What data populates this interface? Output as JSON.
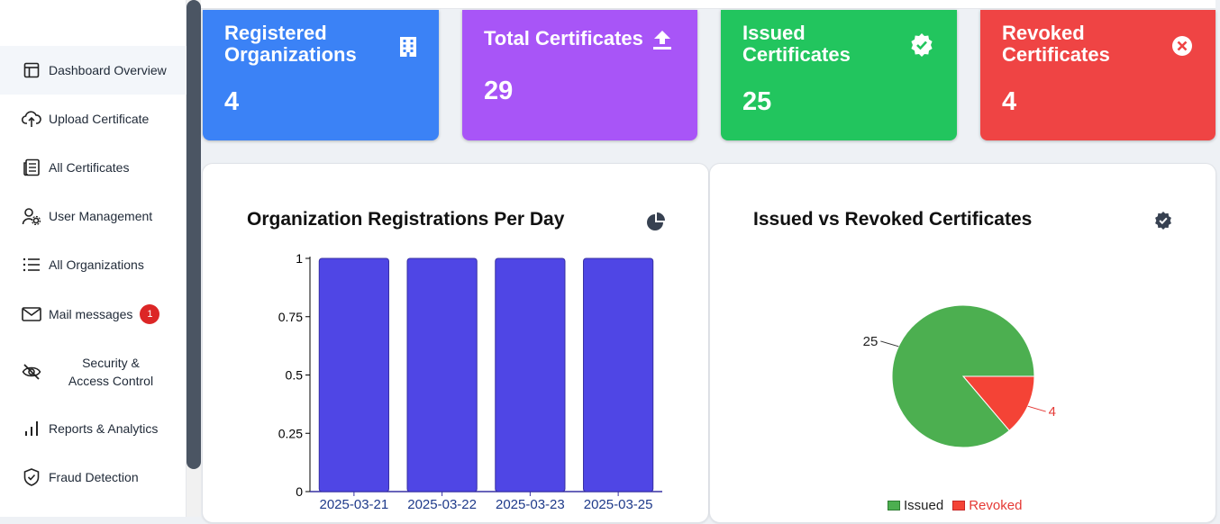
{
  "sidebar": {
    "items": [
      {
        "label": "Dashboard Overview",
        "icon": "layout-icon",
        "active": true
      },
      {
        "label": "Upload Certificate",
        "icon": "cloud-upload-icon"
      },
      {
        "label": "All Certificates",
        "icon": "newspaper-icon"
      },
      {
        "label": "User Management",
        "icon": "user-gear-icon"
      },
      {
        "label": "All Organizations",
        "icon": "list-icon"
      },
      {
        "label": "Mail messages",
        "icon": "mail-icon",
        "badge": "1"
      },
      {
        "label": "Security & Access Control",
        "icon": "eye-off-icon"
      },
      {
        "label": "Reports & Analytics",
        "icon": "bar-chart-icon"
      },
      {
        "label": "Fraud Detection",
        "icon": "shield-check-icon"
      }
    ]
  },
  "stats": [
    {
      "title": "Registered Organizations",
      "value": "4",
      "color": "#3b82f6",
      "icon": "building-icon"
    },
    {
      "title": "Total Certificates",
      "value": "29",
      "color": "#a855f7",
      "icon": "upload-arrow-icon"
    },
    {
      "title": "Issued Certificates",
      "value": "25",
      "color": "#22c55e",
      "icon": "badge-check-icon"
    },
    {
      "title": "Revoked Certificates",
      "value": "4",
      "color": "#ef4444",
      "icon": "x-circle-icon"
    }
  ],
  "charts": {
    "bar_title": "Organization Registrations Per Day",
    "pie_title": "Issued vs Revoked Certificates"
  },
  "chart_data": [
    {
      "type": "bar",
      "title": "Organization Registrations Per Day",
      "categories": [
        "2025-03-21",
        "2025-03-22",
        "2025-03-23",
        "2025-03-25"
      ],
      "values": [
        1,
        1,
        1,
        1
      ],
      "ylim": [
        0,
        1
      ],
      "yticks": [
        "0",
        "0.25",
        "0.5",
        "0.75",
        "1"
      ],
      "color": "#4f46e5"
    },
    {
      "type": "pie",
      "title": "Issued vs Revoked Certificates",
      "labels": [
        "Issued",
        "Revoked"
      ],
      "values": [
        25,
        4
      ],
      "colors": [
        "#4caf50",
        "#f44336"
      ],
      "legend": "bottom"
    }
  ]
}
